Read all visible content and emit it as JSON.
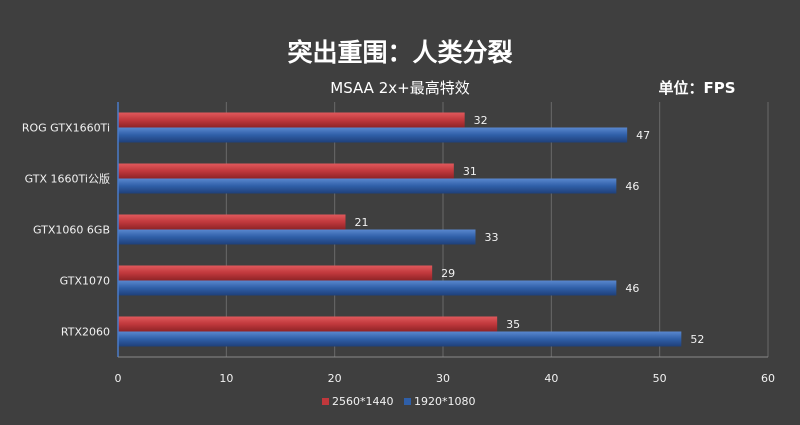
{
  "chart_data": {
    "type": "bar",
    "orientation": "horizontal",
    "title": "突出重围：人类分裂",
    "subtitle": "MSAA 2x+最高特效",
    "unit_label": "单位：FPS",
    "categories": [
      "ROG GTX1660Ti",
      "GTX 1660Ti公版",
      "GTX1060 6GB",
      "GTX1070",
      "RTX2060"
    ],
    "series": [
      {
        "name": "2560*1440",
        "values": [
          32,
          31,
          21,
          29,
          35
        ],
        "color": "#c0383c"
      },
      {
        "name": "1920*1080",
        "values": [
          47,
          46,
          33,
          46,
          52
        ],
        "color": "#2f5fa8"
      }
    ],
    "xlim": [
      0,
      60
    ],
    "xticks": [
      "0",
      "10",
      "20",
      "30",
      "40",
      "50",
      "60"
    ],
    "grid": true,
    "legend_position": "bottom"
  }
}
